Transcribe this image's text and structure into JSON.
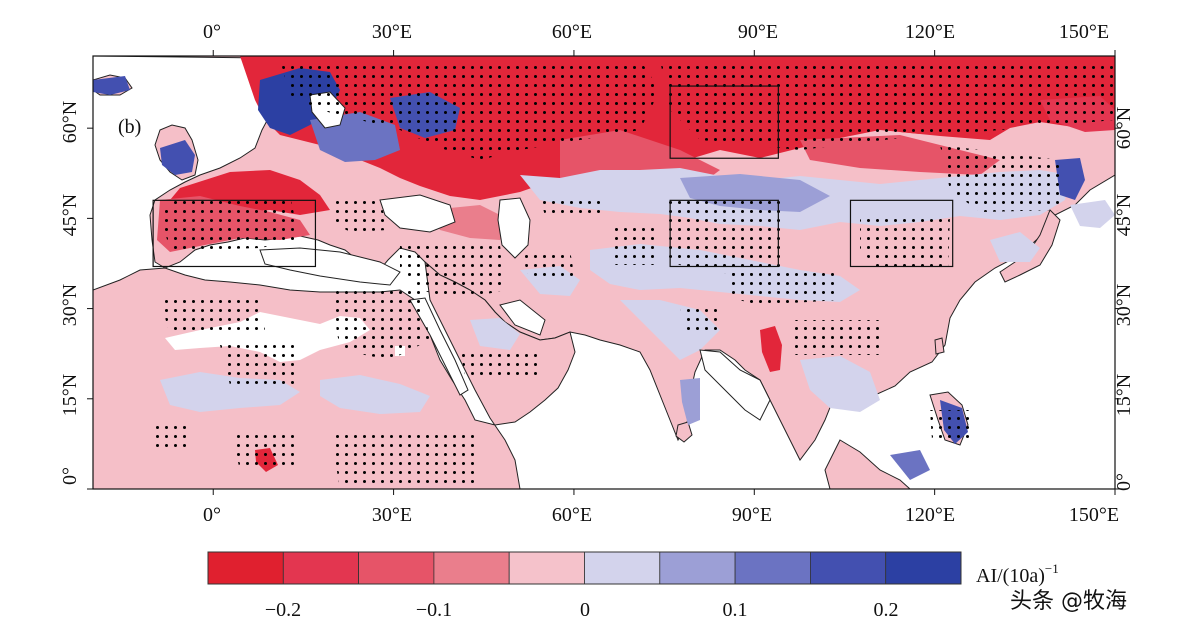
{
  "panel_label": "(b)",
  "map": {
    "top_lon_labels": [
      "0°",
      "30°E",
      "60°E",
      "90°E",
      "120°E",
      "150°E"
    ],
    "bottom_lon_labels": [
      "0°",
      "30°E",
      "60°E",
      "90°E",
      "120°E",
      "150°E"
    ],
    "left_lat_labels": [
      "0°",
      "15°N",
      "30°N",
      "45°N",
      "60°N"
    ],
    "right_lat_labels": [
      "0°",
      "15°N",
      "30°N",
      "45°N",
      "60°N"
    ],
    "lon_ticks_deg": [
      0,
      30,
      60,
      90,
      120,
      150
    ],
    "lat_ticks_deg": [
      0,
      15,
      30,
      45,
      60
    ],
    "extent": {
      "lon_min": -20,
      "lon_max": 150,
      "lat_min": 0,
      "lat_max": 72
    },
    "study_boxes": [
      {
        "lon": [
          -10,
          17
        ],
        "lat": [
          37,
          48
        ]
      },
      {
        "lon": [
          76,
          94
        ],
        "lat": [
          37,
          48
        ]
      },
      {
        "lon": [
          76,
          94
        ],
        "lat": [
          55,
          67
        ]
      },
      {
        "lon": [
          106,
          123
        ],
        "lat": [
          37,
          48
        ]
      }
    ]
  },
  "colorbar": {
    "label": "AI/(10a)",
    "label_exp": "−1",
    "tick_labels": [
      "−0.2",
      "−0.1",
      "0",
      "0.1",
      "0.2"
    ],
    "tick_values": [
      -0.2,
      -0.1,
      0,
      0.1,
      0.2
    ],
    "range": [
      -0.25,
      0.25
    ],
    "colors": [
      "#e0202f",
      "#e33650",
      "#e65468",
      "#ea7e8c",
      "#f5c2cb",
      "#d3d3ec",
      "#9c9fd6",
      "#6b73c2",
      "#4350b0",
      "#2c40a3"
    ]
  },
  "watermark": "头条 @牧海"
}
